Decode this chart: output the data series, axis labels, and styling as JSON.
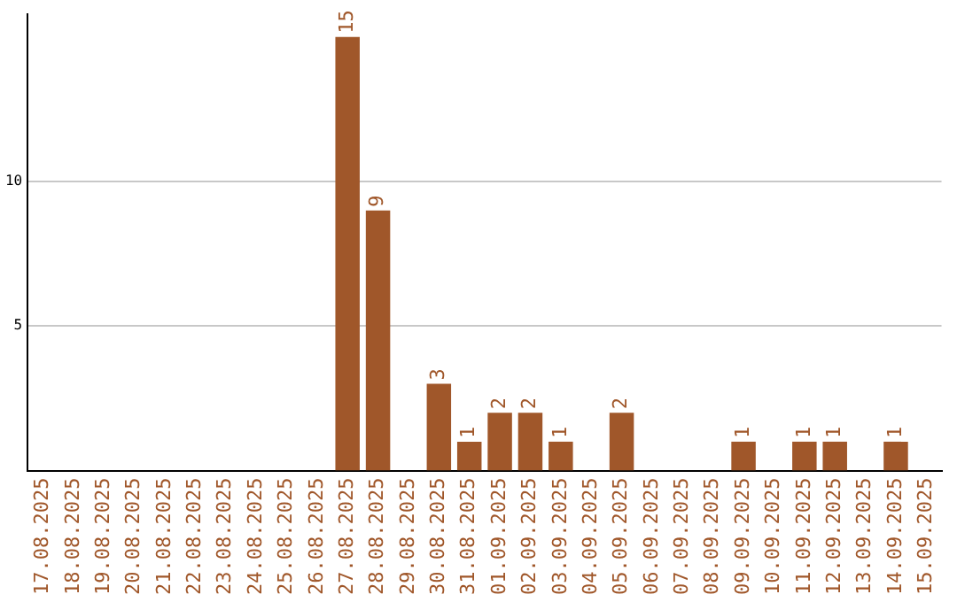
{
  "chart_data": {
    "type": "bar",
    "categories": [
      "17.08.2025",
      "18.08.2025",
      "19.08.2025",
      "20.08.2025",
      "21.08.2025",
      "22.08.2025",
      "23.08.2025",
      "24.08.2025",
      "25.08.2025",
      "26.08.2025",
      "27.08.2025",
      "28.08.2025",
      "29.08.2025",
      "30.08.2025",
      "31.08.2025",
      "01.09.2025",
      "02.09.2025",
      "03.09.2025",
      "04.09.2025",
      "05.09.2025",
      "06.09.2025",
      "07.09.2025",
      "08.09.2025",
      "09.09.2025",
      "10.09.2025",
      "11.09.2025",
      "12.09.2025",
      "13.09.2025",
      "14.09.2025",
      "15.09.2025"
    ],
    "values": [
      0,
      0,
      0,
      0,
      0,
      0,
      0,
      0,
      0,
      0,
      15,
      9,
      0,
      3,
      1,
      2,
      2,
      1,
      0,
      2,
      0,
      0,
      0,
      1,
      0,
      1,
      1,
      0,
      1,
      0
    ],
    "value_labels": [
      null,
      null,
      null,
      null,
      null,
      null,
      null,
      null,
      null,
      null,
      "15",
      "9",
      null,
      "3",
      "1",
      "2",
      "2",
      "1",
      null,
      "2",
      null,
      null,
      null,
      "1",
      null,
      "1",
      "1",
      null,
      "1",
      null
    ],
    "color": "#a0572a",
    "ylim": [
      0,
      15.8
    ],
    "yticks": [
      5,
      10
    ],
    "grid": "y",
    "legend": false
  }
}
